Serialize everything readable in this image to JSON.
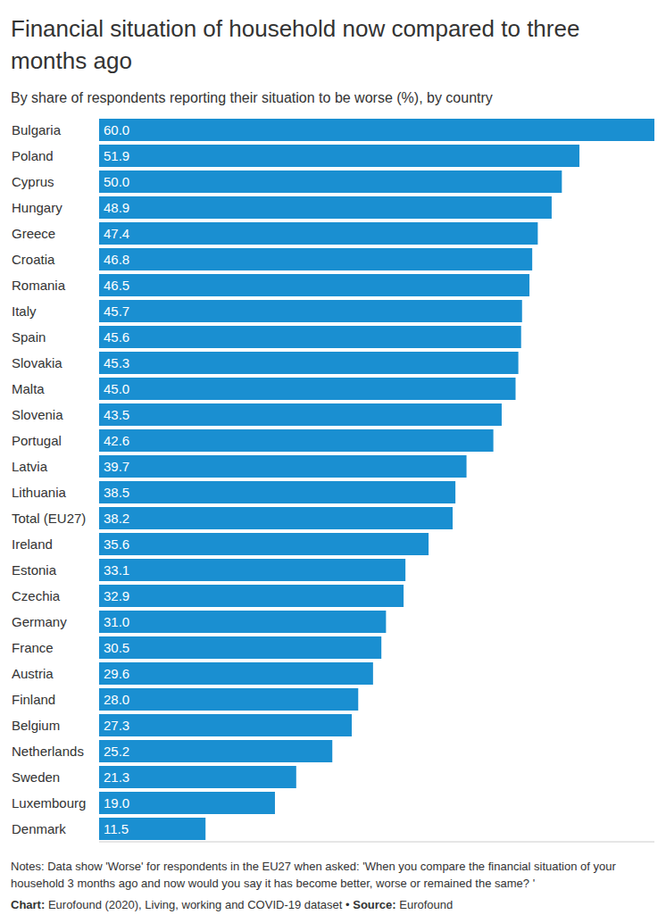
{
  "chart_data": {
    "type": "bar",
    "title": "Financial situation of household now compared to three months ago",
    "subtitle": "By share of respondents reporting their situation to be worse (%), by country",
    "categories": [
      "Bulgaria",
      "Poland",
      "Cyprus",
      "Hungary",
      "Greece",
      "Croatia",
      "Romania",
      "Italy",
      "Spain",
      "Slovakia",
      "Malta",
      "Slovenia",
      "Portugal",
      "Latvia",
      "Lithuania",
      "Total (EU27)",
      "Ireland",
      "Estonia",
      "Czechia",
      "Germany",
      "France",
      "Austria",
      "Finland",
      "Belgium",
      "Netherlands",
      "Sweden",
      "Luxembourg",
      "Denmark"
    ],
    "values": [
      60,
      51.9,
      50,
      48.9,
      47.4,
      46.8,
      46.5,
      45.7,
      45.6,
      45.3,
      45,
      43.5,
      42.6,
      39.7,
      38.5,
      38.2,
      35.6,
      33.1,
      32.9,
      31,
      30.5,
      29.6,
      28,
      27.3,
      25.2,
      21.3,
      19,
      11.5
    ],
    "value_labels": [
      "60.0",
      "51.9",
      "50.0",
      "48.9",
      "47.4",
      "46.8",
      "46.5",
      "45.7",
      "45.6",
      "45.3",
      "45.0",
      "43.5",
      "42.6",
      "39.7",
      "38.5",
      "38.2",
      "35.6",
      "33.1",
      "32.9",
      "31.0",
      "30.5",
      "29.6",
      "28.0",
      "27.3",
      "25.2",
      "21.3",
      "19.0",
      "11.5"
    ],
    "color": "#1a8fd1",
    "orientation": "horizontal",
    "xlim": [
      0,
      60
    ],
    "grid": false,
    "data_labels": true,
    "tick_labels": "y",
    "notes": "Notes: Data show 'Worse' for respondents in the EU27 when asked: 'When you compare the financial situation of your household 3 months ago and now would you say it has become better, worse or remained the same? '",
    "source": {
      "chart_label": "Chart:",
      "chart": "Eurofound (2020), Living, working and COVID-19 dataset",
      "separator": "•",
      "source_label": "Source:",
      "source": "Eurofound"
    }
  }
}
